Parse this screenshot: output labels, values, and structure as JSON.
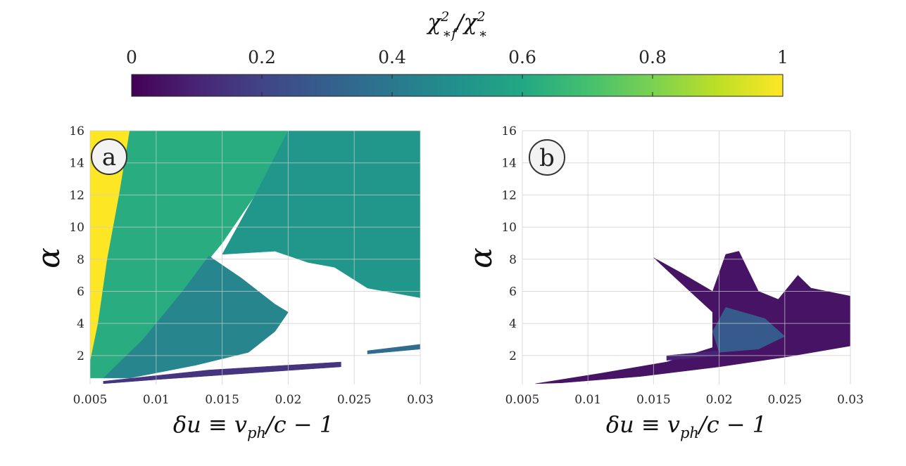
{
  "colorbar": {
    "label": "χ²*f/χ²*",
    "label_main": "χ",
    "label_sup1": "2",
    "label_sub1": "∗f",
    "label_sep": "/χ",
    "label_sup2": "2",
    "label_sub2": "∗",
    "ticks": [
      "0",
      "0.2",
      "0.4",
      "0.6",
      "0.8",
      "1"
    ],
    "range": [
      0,
      1
    ],
    "colormap": "viridis"
  },
  "chart_data": [
    {
      "type": "heatmap",
      "panel_label": "a",
      "xlabel": "δu ≡ vph/c − 1",
      "xlabel_parts": {
        "a": "δu ≡ v",
        "sub": "ph",
        "b": "/c − 1"
      },
      "ylabel": "α",
      "xlim": [
        0.005,
        0.03
      ],
      "ylim": [
        0.2,
        16
      ],
      "x_ticks": [
        "0.005",
        "0.01",
        "0.015",
        "0.02",
        "0.025",
        "0.03"
      ],
      "y_ticks": [
        "2",
        "4",
        "6",
        "8",
        "10",
        "12",
        "14",
        "16"
      ],
      "grid": true,
      "regions": [
        {
          "name": "yellow-band",
          "value": 1.0,
          "polygon": [
            [
              0.005,
              16
            ],
            [
              0.008,
              16
            ],
            [
              0.0072,
              12
            ],
            [
              0.0063,
              8
            ],
            [
              0.0056,
              4
            ],
            [
              0.005,
              1.6
            ]
          ]
        },
        {
          "name": "green-upper",
          "value": 0.62,
          "polygon": [
            [
              0.008,
              16
            ],
            [
              0.02,
              16
            ],
            [
              0.0175,
              12
            ],
            [
              0.015,
              9
            ],
            [
              0.012,
              6
            ],
            [
              0.009,
              3
            ],
            [
              0.006,
              0.6
            ],
            [
              0.005,
              0.6
            ],
            [
              0.005,
              1.6
            ],
            [
              0.0056,
              4
            ],
            [
              0.0063,
              8
            ],
            [
              0.0072,
              12
            ]
          ]
        },
        {
          "name": "teal-right",
          "value": 0.52,
          "polygon": [
            [
              0.02,
              16
            ],
            [
              0.03,
              16
            ],
            [
              0.03,
              5.6
            ],
            [
              0.026,
              6.2
            ],
            [
              0.0235,
              7.5
            ],
            [
              0.0215,
              7.8
            ],
            [
              0.019,
              8.5
            ],
            [
              0.015,
              8.3
            ],
            [
              0.0175,
              12
            ]
          ]
        },
        {
          "name": "lobe",
          "value": 0.45,
          "polygon": [
            [
              0.014,
              8.2
            ],
            [
              0.0165,
              6.8
            ],
            [
              0.019,
              5.2
            ],
            [
              0.02,
              4.7
            ],
            [
              0.019,
              3.5
            ],
            [
              0.017,
              2.2
            ],
            [
              0.013,
              1.4
            ],
            [
              0.008,
              0.6
            ],
            [
              0.006,
              0.6
            ],
            [
              0.009,
              3
            ],
            [
              0.012,
              6
            ]
          ]
        },
        {
          "name": "bottom-strip",
          "value": 0.15,
          "polygon": [
            [
              0.006,
              0.4
            ],
            [
              0.014,
              1.1
            ],
            [
              0.024,
              1.6
            ],
            [
              0.024,
              1.3
            ],
            [
              0.01,
              0.5
            ],
            [
              0.006,
              0.25
            ]
          ]
        },
        {
          "name": "right-sliver",
          "value": 0.35,
          "polygon": [
            [
              0.026,
              2.3
            ],
            [
              0.03,
              2.7
            ],
            [
              0.03,
              2.4
            ],
            [
              0.026,
              2.1
            ]
          ]
        }
      ]
    },
    {
      "type": "heatmap",
      "panel_label": "b",
      "xlabel": "δu ≡ vph/c − 1",
      "xlabel_parts": {
        "a": "δu ≡ v",
        "sub": "ph",
        "b": "/c − 1"
      },
      "ylabel": "α",
      "xlim": [
        0.005,
        0.03
      ],
      "ylim": [
        0.2,
        16
      ],
      "x_ticks": [
        "0.005",
        "0.01",
        "0.015",
        "0.02",
        "0.025",
        "0.03"
      ],
      "y_ticks": [
        "2",
        "4",
        "6",
        "8",
        "10",
        "12",
        "14",
        "16"
      ],
      "grid": true,
      "regions": [
        {
          "name": "dark-wedge",
          "value": 0.05,
          "polygon": [
            [
              0.015,
              8.1
            ],
            [
              0.017,
              7.2
            ],
            [
              0.0195,
              6.0
            ],
            [
              0.0205,
              8.3
            ],
            [
              0.0215,
              8.5
            ],
            [
              0.023,
              6.0
            ],
            [
              0.0245,
              5.5
            ],
            [
              0.026,
              7.0
            ],
            [
              0.027,
              6.2
            ],
            [
              0.03,
              5.7
            ],
            [
              0.03,
              2.6
            ],
            [
              0.025,
              1.9
            ],
            [
              0.02,
              1.3
            ],
            [
              0.014,
              0.7
            ],
            [
              0.008,
              0.3
            ],
            [
              0.006,
              0.25
            ],
            [
              0.011,
              0.9
            ],
            [
              0.016,
              1.6
            ],
            [
              0.0195,
              2.5
            ],
            [
              0.0195,
              4.7
            ],
            [
              0.0175,
              6.2
            ]
          ]
        },
        {
          "name": "blue-core",
          "value": 0.28,
          "polygon": [
            [
              0.0205,
              5.0
            ],
            [
              0.0235,
              4.3
            ],
            [
              0.025,
              3.2
            ],
            [
              0.023,
              2.4
            ],
            [
              0.02,
              2.2
            ],
            [
              0.0195,
              3.5
            ]
          ]
        },
        {
          "name": "lower-strip",
          "value": 0.1,
          "polygon": [
            [
              0.016,
              2.0
            ],
            [
              0.02,
              2.3
            ],
            [
              0.02,
              2.0
            ],
            [
              0.016,
              1.7
            ]
          ]
        }
      ]
    }
  ]
}
